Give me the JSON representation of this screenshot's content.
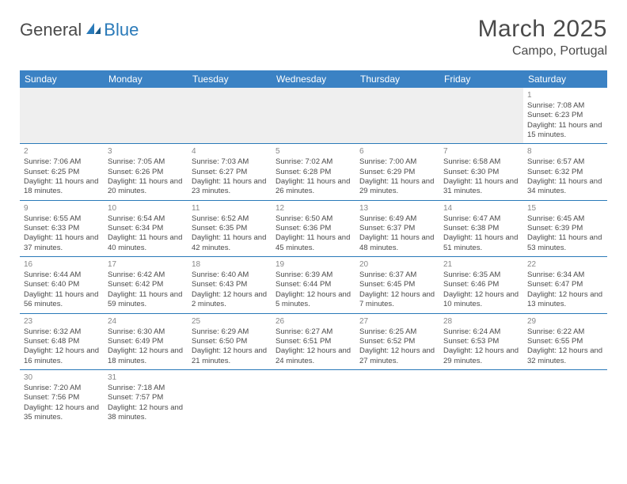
{
  "logo": {
    "text1": "General",
    "text2": "Blue"
  },
  "title": "March 2025",
  "location": "Campo, Portugal",
  "colors": {
    "header_bg": "#3b82c4",
    "header_text": "#ffffff",
    "accent": "#2a7ab9",
    "body_text": "#4a4a4a",
    "day_num": "#888888",
    "blank_bg": "#efefef"
  },
  "weekdays": [
    "Sunday",
    "Monday",
    "Tuesday",
    "Wednesday",
    "Thursday",
    "Friday",
    "Saturday"
  ],
  "days": {
    "1": {
      "sunrise": "7:08 AM",
      "sunset": "6:23 PM",
      "daylight": "11 hours and 15 minutes."
    },
    "2": {
      "sunrise": "7:06 AM",
      "sunset": "6:25 PM",
      "daylight": "11 hours and 18 minutes."
    },
    "3": {
      "sunrise": "7:05 AM",
      "sunset": "6:26 PM",
      "daylight": "11 hours and 20 minutes."
    },
    "4": {
      "sunrise": "7:03 AM",
      "sunset": "6:27 PM",
      "daylight": "11 hours and 23 minutes."
    },
    "5": {
      "sunrise": "7:02 AM",
      "sunset": "6:28 PM",
      "daylight": "11 hours and 26 minutes."
    },
    "6": {
      "sunrise": "7:00 AM",
      "sunset": "6:29 PM",
      "daylight": "11 hours and 29 minutes."
    },
    "7": {
      "sunrise": "6:58 AM",
      "sunset": "6:30 PM",
      "daylight": "11 hours and 31 minutes."
    },
    "8": {
      "sunrise": "6:57 AM",
      "sunset": "6:32 PM",
      "daylight": "11 hours and 34 minutes."
    },
    "9": {
      "sunrise": "6:55 AM",
      "sunset": "6:33 PM",
      "daylight": "11 hours and 37 minutes."
    },
    "10": {
      "sunrise": "6:54 AM",
      "sunset": "6:34 PM",
      "daylight": "11 hours and 40 minutes."
    },
    "11": {
      "sunrise": "6:52 AM",
      "sunset": "6:35 PM",
      "daylight": "11 hours and 42 minutes."
    },
    "12": {
      "sunrise": "6:50 AM",
      "sunset": "6:36 PM",
      "daylight": "11 hours and 45 minutes."
    },
    "13": {
      "sunrise": "6:49 AM",
      "sunset": "6:37 PM",
      "daylight": "11 hours and 48 minutes."
    },
    "14": {
      "sunrise": "6:47 AM",
      "sunset": "6:38 PM",
      "daylight": "11 hours and 51 minutes."
    },
    "15": {
      "sunrise": "6:45 AM",
      "sunset": "6:39 PM",
      "daylight": "11 hours and 53 minutes."
    },
    "16": {
      "sunrise": "6:44 AM",
      "sunset": "6:40 PM",
      "daylight": "11 hours and 56 minutes."
    },
    "17": {
      "sunrise": "6:42 AM",
      "sunset": "6:42 PM",
      "daylight": "11 hours and 59 minutes."
    },
    "18": {
      "sunrise": "6:40 AM",
      "sunset": "6:43 PM",
      "daylight": "12 hours and 2 minutes."
    },
    "19": {
      "sunrise": "6:39 AM",
      "sunset": "6:44 PM",
      "daylight": "12 hours and 5 minutes."
    },
    "20": {
      "sunrise": "6:37 AM",
      "sunset": "6:45 PM",
      "daylight": "12 hours and 7 minutes."
    },
    "21": {
      "sunrise": "6:35 AM",
      "sunset": "6:46 PM",
      "daylight": "12 hours and 10 minutes."
    },
    "22": {
      "sunrise": "6:34 AM",
      "sunset": "6:47 PM",
      "daylight": "12 hours and 13 minutes."
    },
    "23": {
      "sunrise": "6:32 AM",
      "sunset": "6:48 PM",
      "daylight": "12 hours and 16 minutes."
    },
    "24": {
      "sunrise": "6:30 AM",
      "sunset": "6:49 PM",
      "daylight": "12 hours and 18 minutes."
    },
    "25": {
      "sunrise": "6:29 AM",
      "sunset": "6:50 PM",
      "daylight": "12 hours and 21 minutes."
    },
    "26": {
      "sunrise": "6:27 AM",
      "sunset": "6:51 PM",
      "daylight": "12 hours and 24 minutes."
    },
    "27": {
      "sunrise": "6:25 AM",
      "sunset": "6:52 PM",
      "daylight": "12 hours and 27 minutes."
    },
    "28": {
      "sunrise": "6:24 AM",
      "sunset": "6:53 PM",
      "daylight": "12 hours and 29 minutes."
    },
    "29": {
      "sunrise": "6:22 AM",
      "sunset": "6:55 PM",
      "daylight": "12 hours and 32 minutes."
    },
    "30": {
      "sunrise": "7:20 AM",
      "sunset": "7:56 PM",
      "daylight": "12 hours and 35 minutes."
    },
    "31": {
      "sunrise": "7:18 AM",
      "sunset": "7:57 PM",
      "daylight": "12 hours and 38 minutes."
    }
  },
  "labels": {
    "sunrise": "Sunrise:",
    "sunset": "Sunset:",
    "daylight": "Daylight:"
  },
  "layout": {
    "first_day_column": 6,
    "num_days": 31,
    "columns": 7
  }
}
